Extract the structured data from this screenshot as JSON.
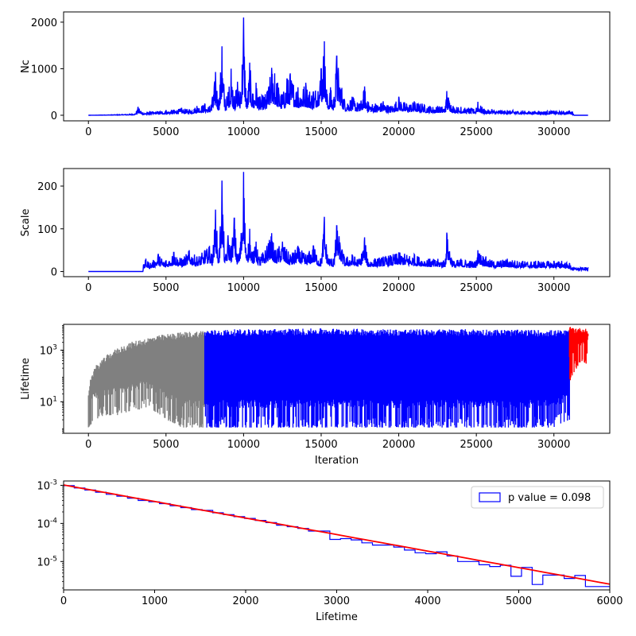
{
  "chart_data": [
    {
      "type": "line",
      "title": "",
      "xlabel": "",
      "ylabel": "Nc",
      "xlim": [
        -1600,
        33600
      ],
      "ylim": [
        -120,
        2220
      ],
      "xticks": [
        0,
        5000,
        10000,
        15000,
        20000,
        25000,
        30000
      ],
      "xtick_labels": [
        "0",
        "5000",
        "10000",
        "15000",
        "20000",
        "25000",
        "30000"
      ],
      "yticks": [
        0,
        1000,
        2000
      ],
      "ytick_labels": [
        "0",
        "1000",
        "2000"
      ],
      "grid": false,
      "series": [
        {
          "color": "#0000ff",
          "x": [
            0,
            2000,
            3000,
            3200,
            3500,
            4000,
            5000,
            6000,
            6500,
            7000,
            7500,
            7800,
            8000,
            8200,
            8400,
            8600,
            8800,
            9000,
            9200,
            9400,
            9600,
            9800,
            10000,
            10200,
            10400,
            10600,
            10800,
            11000,
            11500,
            11800,
            12000,
            12200,
            12500,
            12800,
            13000,
            13500,
            14000,
            14500,
            15000,
            15200,
            15400,
            15600,
            15800,
            16000,
            16500,
            17000,
            17500,
            17800,
            18000,
            18500,
            19000,
            19500,
            20000,
            20500,
            21000,
            21500,
            22000,
            22500,
            23000,
            23100,
            23500,
            24000,
            24500,
            25000,
            25100,
            25500,
            26000,
            27000,
            28000,
            29000,
            30000,
            30500,
            31000,
            31200,
            31300,
            32200
          ],
          "y": [
            0,
            15,
            30,
            180,
            60,
            80,
            100,
            150,
            130,
            200,
            250,
            200,
            400,
            930,
            300,
            1480,
            350,
            500,
            1000,
            400,
            720,
            500,
            2100,
            300,
            1130,
            450,
            700,
            400,
            500,
            1020,
            900,
            700,
            450,
            780,
            900,
            600,
            700,
            500,
            1000,
            1590,
            400,
            600,
            350,
            1270,
            350,
            400,
            250,
            620,
            300,
            250,
            300,
            200,
            400,
            250,
            300,
            250,
            200,
            200,
            200,
            520,
            200,
            180,
            150,
            150,
            290,
            130,
            120,
            110,
            100,
            90,
            100,
            80,
            100,
            80,
            0,
            0
          ]
        }
      ]
    },
    {
      "type": "line",
      "title": "",
      "xlabel": "",
      "ylabel": "Scale",
      "xlim": [
        -1600,
        33600
      ],
      "ylim": [
        -12,
        241
      ],
      "xticks": [
        0,
        5000,
        10000,
        15000,
        20000,
        25000,
        30000
      ],
      "xtick_labels": [
        "0",
        "5000",
        "10000",
        "15000",
        "20000",
        "25000",
        "30000"
      ],
      "yticks": [
        0,
        100,
        200
      ],
      "ytick_labels": [
        "0",
        "100",
        "200"
      ],
      "grid": false,
      "series": [
        {
          "color": "#0000ff",
          "x": [
            0,
            3500,
            3550,
            3700,
            4000,
            4500,
            5000,
            5500,
            6000,
            6500,
            7000,
            7500,
            7800,
            8000,
            8200,
            8400,
            8600,
            8800,
            9000,
            9200,
            9400,
            9600,
            9800,
            10000,
            10200,
            10400,
            10600,
            10800,
            11000,
            11500,
            11800,
            12000,
            12500,
            13000,
            13500,
            14000,
            14500,
            15000,
            15200,
            15400,
            15800,
            16000,
            16500,
            17000,
            17500,
            17800,
            18000,
            19000,
            20000,
            21000,
            22000,
            23000,
            23100,
            23500,
            24000,
            25000,
            25100,
            26000,
            27000,
            28000,
            29000,
            30000,
            30500,
            31000,
            31200,
            32200
          ],
          "y": [
            0,
            0,
            15,
            30,
            20,
            40,
            25,
            45,
            30,
            50,
            35,
            50,
            60,
            40,
            145,
            30,
            213,
            30,
            85,
            60,
            125,
            40,
            70,
            233,
            30,
            100,
            45,
            70,
            35,
            60,
            90,
            50,
            70,
            40,
            60,
            40,
            60,
            30,
            128,
            40,
            30,
            107,
            35,
            40,
            30,
            80,
            30,
            35,
            45,
            40,
            30,
            30,
            91,
            25,
            30,
            25,
            50,
            25,
            30,
            25,
            25,
            25,
            25,
            20,
            10,
            10
          ]
        }
      ]
    },
    {
      "type": "line",
      "title": "",
      "xlabel": "Iteration",
      "ylabel": "Lifetime",
      "yscale": "log",
      "xlim": [
        -1600,
        33600
      ],
      "ylim": [
        0.6,
        10000
      ],
      "xticks": [
        0,
        5000,
        10000,
        15000,
        20000,
        25000,
        30000
      ],
      "xtick_labels": [
        "0",
        "5000",
        "10000",
        "15000",
        "20000",
        "25000",
        "30000"
      ],
      "yticks": [
        10,
        1000
      ],
      "ytick_labels": [
        "10^1",
        "10^3"
      ],
      "grid": false,
      "series": [
        {
          "color": "#808080",
          "x": [
            0,
            1000,
            2000,
            3000,
            4000,
            5000,
            6000,
            7000,
            7500
          ],
          "envelope_upper": [
            20,
            500,
            1300,
            2300,
            3200,
            4200,
            5000,
            5500,
            6000
          ],
          "envelope_lower": [
            1,
            3,
            3,
            5,
            5,
            2,
            1,
            1,
            1
          ]
        },
        {
          "color": "#0000ff",
          "x": [
            7500,
            10000,
            15000,
            20000,
            25000,
            30000,
            31000
          ],
          "envelope_upper": [
            6000,
            6500,
            7000,
            6500,
            6500,
            6000,
            6000
          ],
          "envelope_lower": [
            1,
            1,
            1,
            1,
            1,
            1,
            2
          ]
        },
        {
          "color": "#ff0000",
          "x": [
            31000,
            31500,
            32000,
            32200
          ],
          "envelope_upper": [
            8000,
            7500,
            7000,
            6500
          ],
          "envelope_lower": [
            50,
            200,
            300,
            300
          ]
        }
      ]
    },
    {
      "type": "line",
      "title": "",
      "xlabel": "Lifetime",
      "ylabel": "",
      "yscale": "log",
      "xlim": [
        0,
        6000
      ],
      "ylim": [
        1.8e-06,
        0.0013
      ],
      "xticks": [
        0,
        1000,
        2000,
        3000,
        4000,
        5000,
        6000
      ],
      "xtick_labels": [
        "0",
        "1000",
        "2000",
        "3000",
        "4000",
        "5000",
        "6000"
      ],
      "yticks": [
        1e-05,
        0.0001,
        0.001
      ],
      "ytick_labels": [
        "10^-5",
        "10^-4",
        "10^-3"
      ],
      "legend": {
        "position": "top-right",
        "entries": [
          "p value = 0.098"
        ]
      },
      "grid": false,
      "series": [
        {
          "type": "step-histogram",
          "color": "#0000ff",
          "bins": [
            0,
            117,
            234,
            351,
            468,
            585,
            702,
            819,
            936,
            1053,
            1170,
            1287,
            1404,
            1521,
            1638,
            1755,
            1872,
            1989,
            2106,
            2223,
            2340,
            2457,
            2574,
            2691,
            2808,
            2925,
            3042,
            3159,
            3276,
            3393,
            3510,
            3627,
            3744,
            3861,
            3978,
            4095,
            4212,
            4329,
            4446,
            4563,
            4680,
            4797,
            4914,
            5031,
            5148,
            5265,
            5382,
            5499,
            5616,
            5733,
            5850,
            6000
          ],
          "values": [
            0.00098,
            0.00085,
            0.00075,
            0.00066,
            0.00058,
            0.00052,
            0.00046,
            0.0004,
            0.00037,
            0.00033,
            0.00029,
            0.00026,
            0.00023,
            0.00022,
            0.00019,
            0.00017,
            0.00015,
            0.000135,
            0.00012,
            0.000105,
            9e-05,
            8.2e-05,
            7.4e-05,
            6.3e-05,
            6.3e-05,
            3.8e-05,
            4e-05,
            3.7e-05,
            3.1e-05,
            2.7e-05,
            2.7e-05,
            2.4e-05,
            2e-05,
            1.7e-05,
            1.6e-05,
            1.8e-05,
            1.4e-05,
            1e-05,
            1e-05,
            8.2e-06,
            7.4e-06,
            8e-06,
            4.1e-06,
            7e-06,
            2.5e-06,
            4.4e-06,
            4.4e-06,
            3.6e-06,
            4.3e-06,
            2.2e-06,
            2.2e-06
          ]
        },
        {
          "type": "fit-line",
          "color": "#ff0000",
          "x": [
            0,
            6000
          ],
          "y": [
            0.00102,
            2.55e-06
          ]
        }
      ]
    }
  ]
}
